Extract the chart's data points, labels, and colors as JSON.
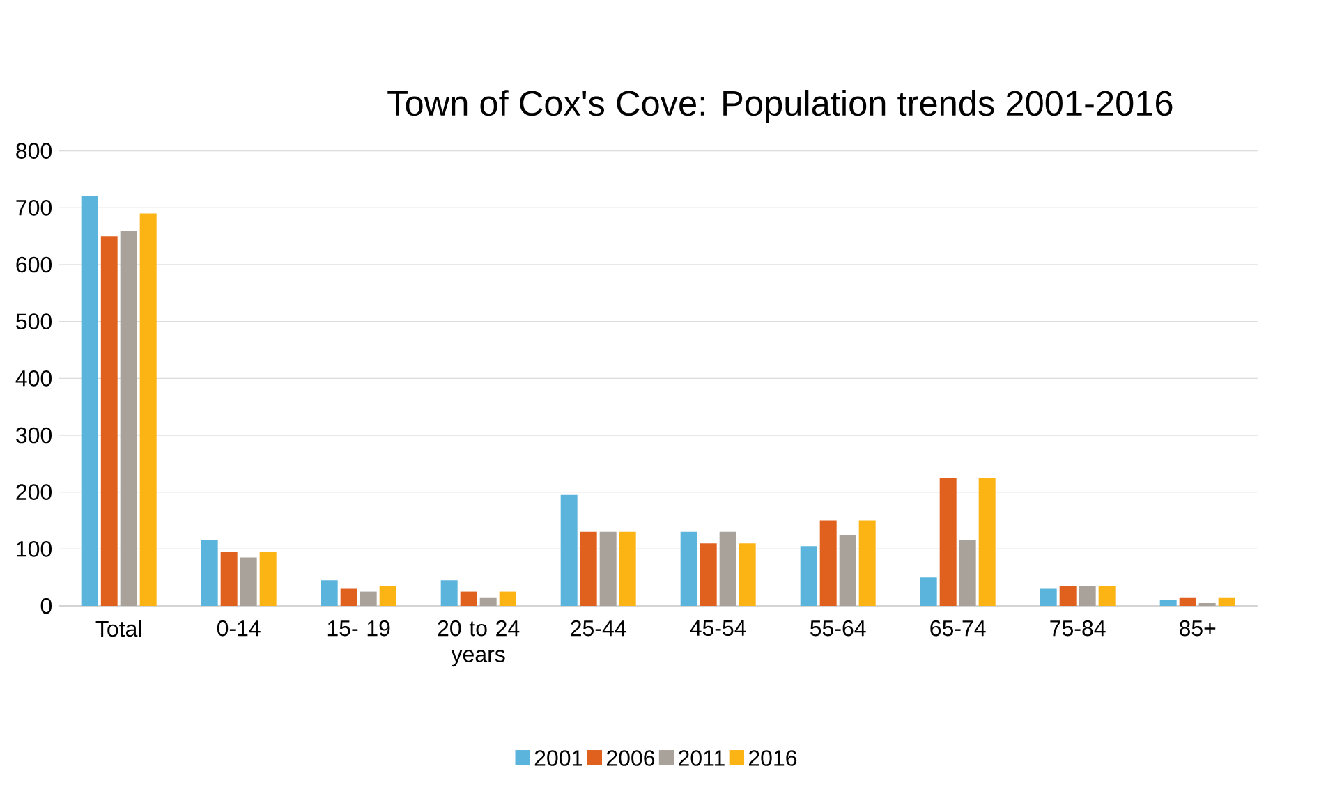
{
  "chart_data": {
    "type": "bar",
    "title": "Town of Cox's Cove: Population trends 2001-2016",
    "categories": [
      "Total",
      "0-14",
      "15- 19",
      "20 to 24 years",
      "25-44",
      "45-54",
      "55-64",
      "65-74",
      "75-84",
      "85+"
    ],
    "series": [
      {
        "name": "2001",
        "color": "#5ab4dc",
        "values": [
          720,
          115,
          45,
          45,
          195,
          130,
          105,
          50,
          30,
          10
        ]
      },
      {
        "name": "2006",
        "color": "#e0601e",
        "values": [
          650,
          95,
          30,
          25,
          130,
          110,
          150,
          225,
          35,
          15
        ]
      },
      {
        "name": "2011",
        "color": "#a8a29a",
        "values": [
          660,
          85,
          25,
          15,
          130,
          130,
          125,
          115,
          35,
          5
        ]
      },
      {
        "name": "2016",
        "color": "#fcb314",
        "values": [
          690,
          95,
          35,
          25,
          130,
          110,
          150,
          225,
          35,
          15
        ]
      }
    ],
    "ylim": [
      0,
      800
    ],
    "yticks": [
      0,
      100,
      200,
      300,
      400,
      500,
      600,
      700,
      800
    ],
    "grid": "y",
    "legend": "bottom"
  }
}
